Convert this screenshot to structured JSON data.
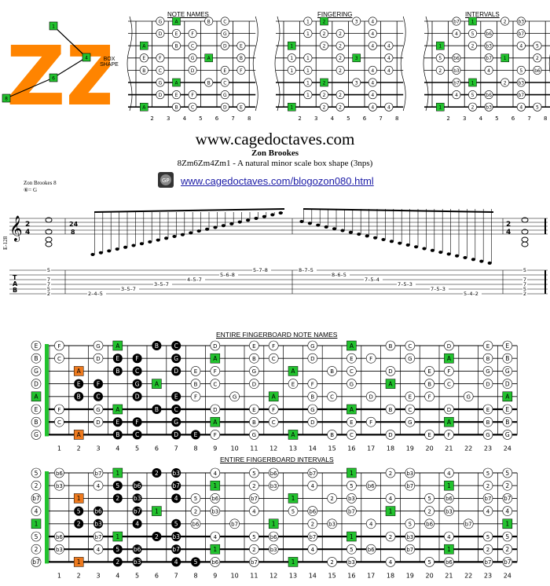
{
  "logo": {
    "letters": "ZZ",
    "path_nodes": [
      "1",
      "4",
      "6",
      "8"
    ],
    "caption": "BOX SHAPE"
  },
  "diagrams": [
    {
      "title": "NOTE NAMES"
    },
    {
      "title": "FINGERING"
    },
    {
      "title": "INTERVALS"
    }
  ],
  "fret_numbers_small": [
    "2",
    "3",
    "4",
    "5",
    "6",
    "7",
    "8"
  ],
  "header": {
    "site": "www.cagedoctaves.com",
    "author": "Zon Brookes",
    "subtitle": "8Zm6Zm4Zm1 - A natural minor scale box shape (3nps)",
    "blog_link": "www.cagedoctaves.com/blogozon080.html"
  },
  "score": {
    "label": "Zon Brookes 8",
    "tuning": "⑥= G",
    "time_sig_main": "24/8",
    "time_sig_side": "2/4",
    "side_label": "E-128",
    "tab_ascending": [
      "2-4-5",
      "3-5-7",
      "3-5-7",
      "4-5-7",
      "5-6-8",
      "5-7-8"
    ],
    "tab_descending": [
      "8-7-5",
      "8-6-5",
      "7-5-4",
      "7-5-3",
      "7-5-3",
      "5-4-2"
    ]
  },
  "fingerboards": [
    {
      "title": "ENTIRE FINGERBOARD NOTE NAMES",
      "strings": [
        "E",
        "B",
        "G",
        "D",
        "A",
        "E",
        "B",
        "G"
      ]
    },
    {
      "title": "ENTIRE FINGERBOARD INTERVALS",
      "strings": [
        "5",
        "2",
        "b7",
        "4",
        "1",
        "5",
        "2",
        "b7"
      ]
    }
  ],
  "fret_numbers_large": [
    "1",
    "2",
    "3",
    "4",
    "5",
    "6",
    "7",
    "8",
    "9",
    "10",
    "11",
    "12",
    "13",
    "14",
    "15",
    "16",
    "17",
    "18",
    "19",
    "20",
    "21",
    "22",
    "23",
    "24"
  ],
  "note_rows": [
    [
      "F",
      "",
      "G",
      "A",
      "",
      "B",
      "C",
      "",
      "D",
      "",
      "E",
      "F",
      "",
      "G",
      "",
      "A",
      "",
      "B",
      "C",
      "",
      "D",
      "",
      "E"
    ],
    [
      "C",
      "",
      "D",
      "E",
      "F",
      "",
      "G",
      "",
      "A",
      "",
      "B",
      "C",
      "",
      "D",
      "",
      "E",
      "F",
      "",
      "G",
      "",
      "A",
      "",
      "B"
    ],
    [
      "",
      "A",
      "",
      "B",
      "C",
      "",
      "D",
      "E",
      "F",
      "",
      "G",
      "",
      "A",
      "",
      "B",
      "C",
      "",
      "D",
      "",
      "E",
      "F",
      "",
      "G"
    ],
    [
      "",
      "E",
      "F",
      "",
      "G",
      "A",
      "",
      "B",
      "C",
      "",
      "D",
      "",
      "E",
      "F",
      "",
      "G",
      "",
      "A",
      "",
      "B",
      "C",
      "",
      "D"
    ],
    [
      "",
      "B",
      "C",
      "",
      "D",
      "",
      "E",
      "F",
      "",
      "G",
      "",
      "A",
      "",
      "B",
      "C",
      "",
      "D",
      "",
      "E",
      "F",
      "",
      "G",
      "",
      "A"
    ],
    [
      "F",
      "",
      "G",
      "A",
      "",
      "B",
      "C",
      "",
      "D",
      "",
      "E",
      "F",
      "",
      "G",
      "",
      "A",
      "",
      "B",
      "C",
      "",
      "D",
      "",
      "E"
    ],
    [
      "C",
      "",
      "D",
      "E",
      "F",
      "",
      "G",
      "",
      "A",
      "",
      "B",
      "C",
      "",
      "D",
      "",
      "E",
      "F",
      "",
      "G",
      "",
      "A",
      "",
      "B"
    ],
    [
      "",
      "A",
      "",
      "B",
      "C",
      "",
      "D",
      "E",
      "F",
      "",
      "G",
      "",
      "A",
      "",
      "B",
      "C",
      "",
      "D",
      "",
      "E",
      "F",
      "",
      "G"
    ]
  ],
  "interval_rows": [
    [
      "b6",
      "",
      "b7",
      "1",
      "",
      "2",
      "b3",
      "",
      "4",
      "",
      "5",
      "b6",
      "",
      "b7",
      "",
      "1",
      "",
      "2",
      "b3",
      "",
      "4",
      "",
      "5"
    ],
    [
      "b3",
      "",
      "4",
      "5",
      "b6",
      "",
      "b7",
      "",
      "1",
      "",
      "2",
      "b3",
      "",
      "4",
      "",
      "5",
      "b6",
      "",
      "b7",
      "",
      "1",
      "",
      "2"
    ],
    [
      "",
      "1",
      "",
      "2",
      "b3",
      "",
      "4",
      "5",
      "b6",
      "",
      "b7",
      "",
      "1",
      "",
      "2",
      "b3",
      "",
      "4",
      "",
      "5",
      "b6",
      "",
      "b7"
    ],
    [
      "",
      "5",
      "b6",
      "",
      "b7",
      "1",
      "",
      "2",
      "b3",
      "",
      "4",
      "",
      "5",
      "b6",
      "",
      "b7",
      "",
      "1",
      "",
      "2",
      "b3",
      "",
      "4"
    ],
    [
      "",
      "2",
      "b3",
      "",
      "4",
      "",
      "5",
      "b6",
      "",
      "b7",
      "",
      "1",
      "",
      "2",
      "b3",
      "",
      "4",
      "",
      "5",
      "b6",
      "",
      "b7",
      "",
      "1"
    ],
    [
      "b6",
      "",
      "b7",
      "1",
      "",
      "2",
      "b3",
      "",
      "4",
      "",
      "5",
      "b6",
      "",
      "b7",
      "",
      "1",
      "",
      "2",
      "b3",
      "",
      "4",
      "",
      "5"
    ],
    [
      "b3",
      "",
      "4",
      "5",
      "b6",
      "",
      "b7",
      "",
      "1",
      "",
      "2",
      "b3",
      "",
      "4",
      "",
      "5",
      "b6",
      "",
      "b7",
      "",
      "1",
      "",
      "2"
    ],
    [
      "",
      "1",
      "",
      "2",
      "b3",
      "",
      "4",
      "5",
      "b6",
      "",
      "b7",
      "",
      "1",
      "",
      "2",
      "b3",
      "",
      "4",
      "",
      "5",
      "b6",
      "",
      "b7"
    ]
  ],
  "colors": {
    "root": "#22c22e",
    "box": "#ee7a1e",
    "black": "#000000",
    "logo": "#ff8400",
    "link": "#1a1aa6"
  }
}
